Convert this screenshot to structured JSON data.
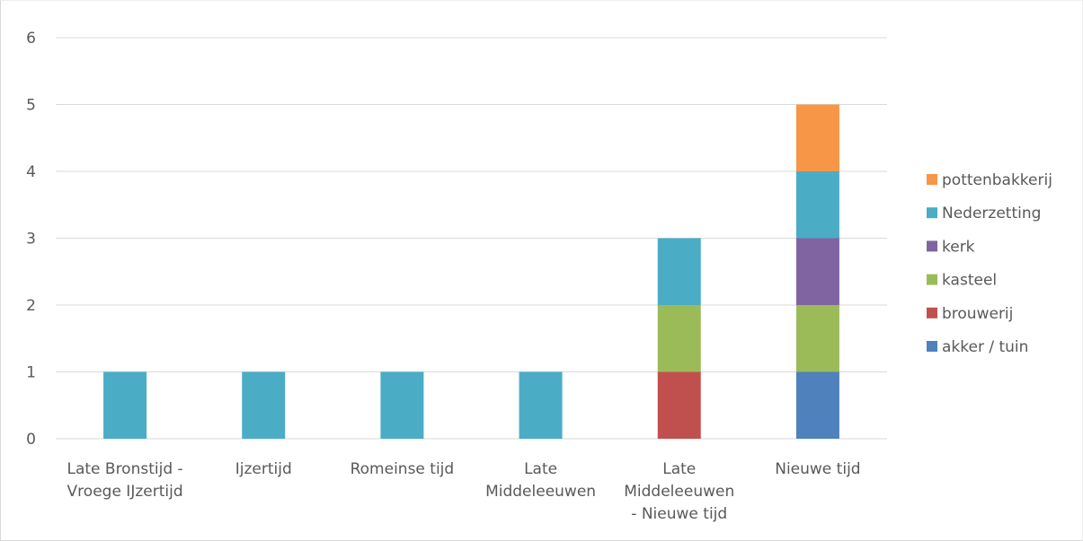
{
  "chart_data": {
    "type": "bar",
    "stacked": true,
    "categories": [
      [
        "Late Bronstijd -",
        "Vroege IJzertijd"
      ],
      [
        "Ijzertijd"
      ],
      [
        "Romeinse tijd"
      ],
      [
        "Late",
        "Middeleeuwen"
      ],
      [
        "Late",
        "Middeleeuwen",
        "- Nieuwe tijd"
      ],
      [
        "Nieuwe tijd"
      ]
    ],
    "series": [
      {
        "name": "akker / tuin",
        "color": "#4f81bd",
        "values": [
          0,
          0,
          0,
          0,
          0,
          1
        ]
      },
      {
        "name": "brouwerij",
        "color": "#c0504d",
        "values": [
          0,
          0,
          0,
          0,
          1,
          0
        ]
      },
      {
        "name": "kasteel",
        "color": "#9bbb59",
        "values": [
          0,
          0,
          0,
          0,
          1,
          1
        ]
      },
      {
        "name": "kerk",
        "color": "#8064a2",
        "values": [
          0,
          0,
          0,
          0,
          0,
          1
        ]
      },
      {
        "name": "Nederzetting",
        "color": "#4bacc6",
        "values": [
          1,
          1,
          1,
          1,
          1,
          1
        ]
      },
      {
        "name": "pottenbakkerij",
        "color": "#f79646",
        "values": [
          0,
          0,
          0,
          0,
          0,
          1
        ]
      }
    ],
    "y_ticks": [
      "0",
      "1",
      "2",
      "3",
      "4",
      "5",
      "6"
    ],
    "ylim": [
      0,
      6
    ],
    "grid": true,
    "legend_position": "right"
  }
}
